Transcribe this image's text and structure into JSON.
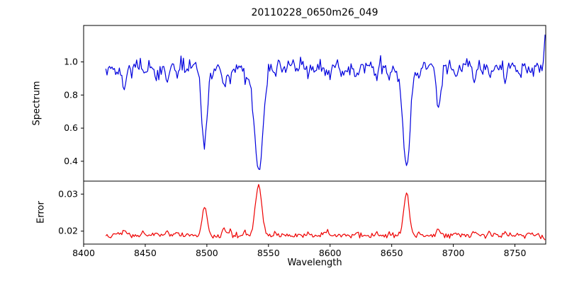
{
  "chart_data": {
    "type": "line",
    "title": "20110228_0650m26_049",
    "xlabel": "Wavelength",
    "xlim": [
      8400,
      8775
    ],
    "xticks": [
      8400,
      8450,
      8500,
      8550,
      8600,
      8650,
      8700,
      8750
    ],
    "x_start": 8418,
    "x_end": 8772,
    "x_step": 1,
    "seed": 20110228,
    "noise": {
      "spectrum_uniform": 0.02,
      "spectrum_tail": 0.055,
      "error_uniform": 0.00035,
      "error_tail": 0.0007
    },
    "panels": [
      {
        "name": "spectrum",
        "ylabel": "Spectrum",
        "color": "#0000dd",
        "ylim": [
          0.28,
          1.22
        ],
        "yticks": [
          0.4,
          0.6,
          0.8,
          1.0
        ],
        "ytick_decimals": 1,
        "continuum": 0.97,
        "absorption_lines": [
          {
            "center": 8498,
            "depth": 0.47,
            "width": 2.4
          },
          {
            "center": 8542,
            "depth": 0.63,
            "width": 3.6
          },
          {
            "center": 8662,
            "depth": 0.61,
            "width": 3.0
          },
          {
            "center": 8688,
            "depth": 0.25,
            "width": 1.8
          }
        ],
        "minor_dips": [
          [
            8427,
            0.06
          ],
          [
            8433,
            0.14
          ],
          [
            8449,
            0.05
          ],
          [
            8459,
            0.07
          ],
          [
            8468,
            0.09
          ],
          [
            8476,
            0.06
          ],
          [
            8484,
            0.05
          ],
          [
            8514,
            0.15
          ],
          [
            8519,
            0.08
          ],
          [
            8531,
            0.07
          ],
          [
            8556,
            0.05
          ],
          [
            8582,
            0.06
          ],
          [
            8598,
            0.06
          ],
          [
            8611,
            0.05
          ],
          [
            8621,
            0.07
          ],
          [
            8637,
            0.06
          ],
          [
            8648,
            0.07
          ],
          [
            8672,
            0.06
          ],
          [
            8702,
            0.05
          ],
          [
            8717,
            0.09
          ],
          [
            8730,
            0.06
          ],
          [
            8742,
            0.07
          ],
          [
            8754,
            0.05
          ],
          [
            8762,
            0.06
          ]
        ],
        "edge_spike": [
          [
            8773,
            1.0
          ],
          [
            8774.5,
            1.165
          ]
        ]
      },
      {
        "name": "error",
        "ylabel": "Error",
        "color": "#ee0000",
        "ylim": [
          0.0165,
          0.0335
        ],
        "yticks": [
          0.02,
          0.03
        ],
        "ytick_decimals": 2,
        "baseline": 0.0188,
        "peaks": [
          {
            "center": 8498,
            "height": 0.008,
            "width": 2.0
          },
          {
            "center": 8542,
            "height": 0.0135,
            "width": 2.6
          },
          {
            "center": 8662,
            "height": 0.012,
            "width": 2.2
          },
          {
            "center": 8688,
            "height": 0.0018,
            "width": 1.6
          }
        ],
        "dip_bump_factor": 0.012,
        "edge": [
          [
            8773,
            0.0182
          ],
          [
            8774.5,
            0.0176
          ]
        ]
      }
    ]
  }
}
